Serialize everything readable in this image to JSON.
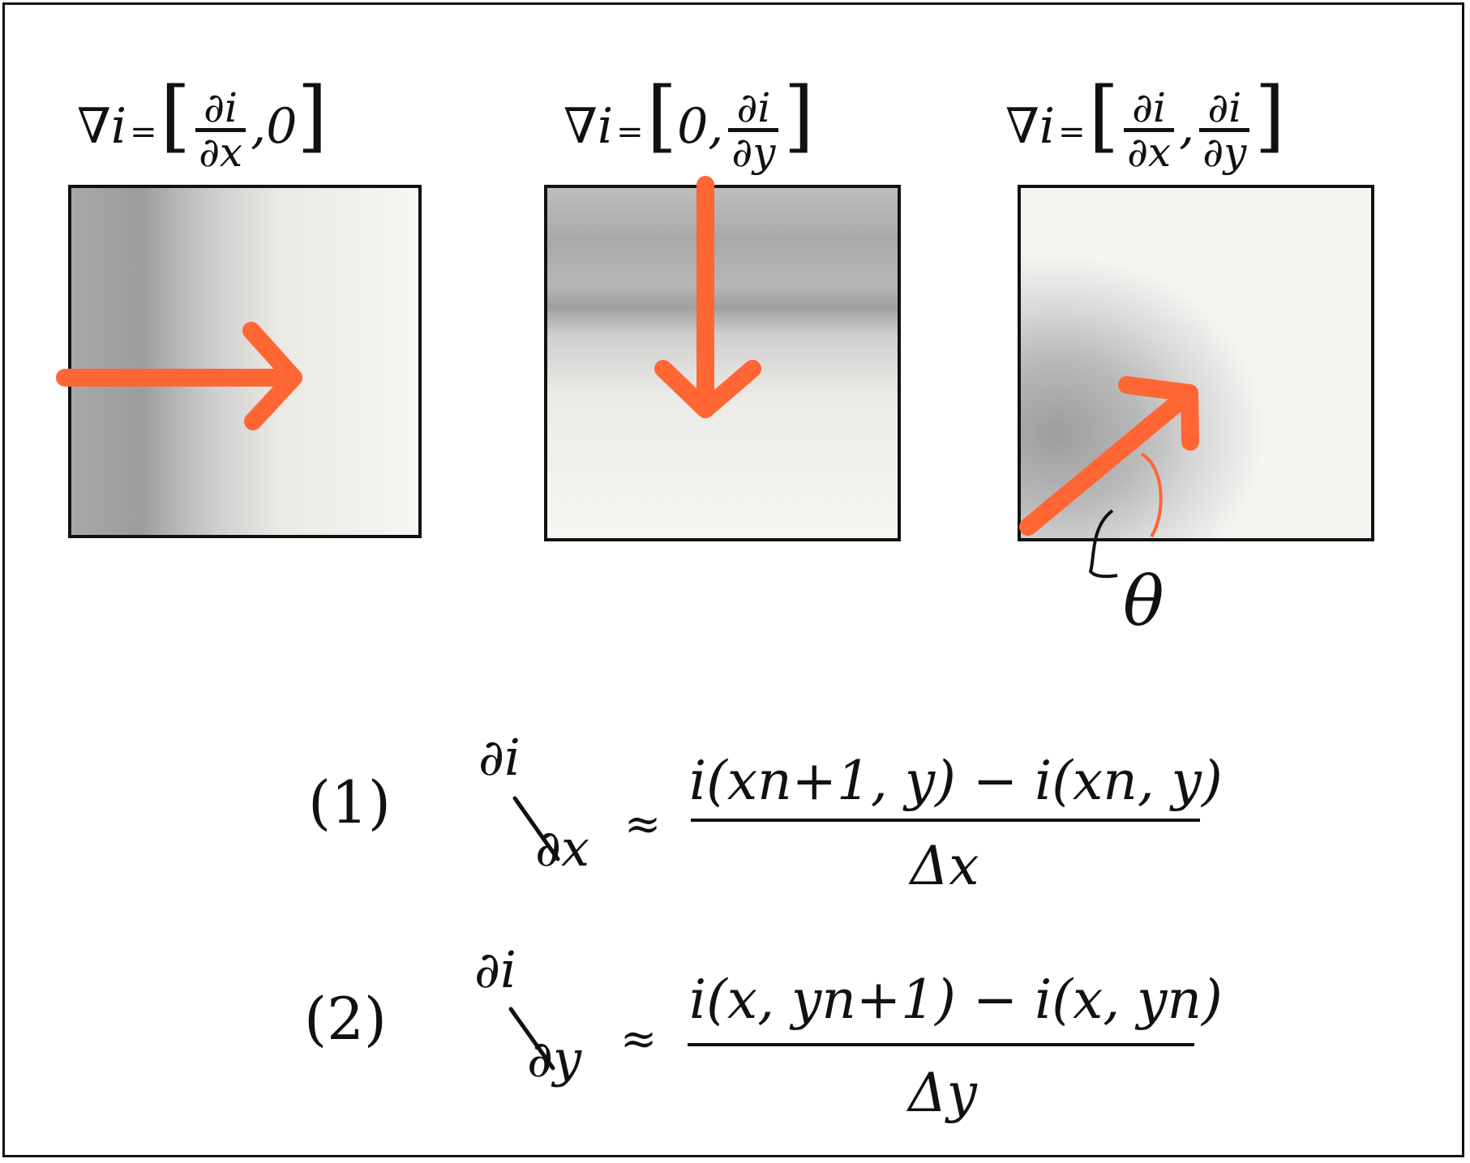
{
  "panels": [
    {
      "nabla": "∇",
      "var": "i",
      "eq": "=",
      "open": "[",
      "frac_num": "∂i",
      "frac_den": "∂x",
      "sep": ",",
      "other": "0",
      "close": "]",
      "order": "x-first",
      "gradient_direction": "right"
    },
    {
      "nabla": "∇",
      "var": "i",
      "eq": "=",
      "open": "[",
      "other": "0",
      "sep": ",",
      "frac_num": "∂i",
      "frac_den": "∂y",
      "close": "]",
      "order": "zero-first",
      "gradient_direction": "down"
    },
    {
      "nabla": "∇",
      "var": "i",
      "eq": "=",
      "open": "[",
      "frac_num": "∂i",
      "frac_den": "∂x",
      "sep": ",",
      "frac2_num": "∂i",
      "frac2_den": "∂y",
      "close": "]",
      "order": "both",
      "gradient_direction": "up-right",
      "angle_label": "θ"
    }
  ],
  "equations": [
    {
      "number": "(1)",
      "lhs_num": "∂i",
      "lhs_den": "∂x",
      "approx": "≈",
      "numerator": "i(xn+1, y) − i(xn, y)",
      "denominator": "Δx"
    },
    {
      "number": "(2)",
      "lhs_num": "∂i",
      "lhs_den": "∂y",
      "approx": "≈",
      "numerator": "i(x, yn+1) − i(x, yn)",
      "denominator": "Δy"
    }
  ],
  "colors": {
    "arrow": "#ff6633",
    "ink": "#111111",
    "shade": "#8a8a8a",
    "background": "#ffffff"
  }
}
